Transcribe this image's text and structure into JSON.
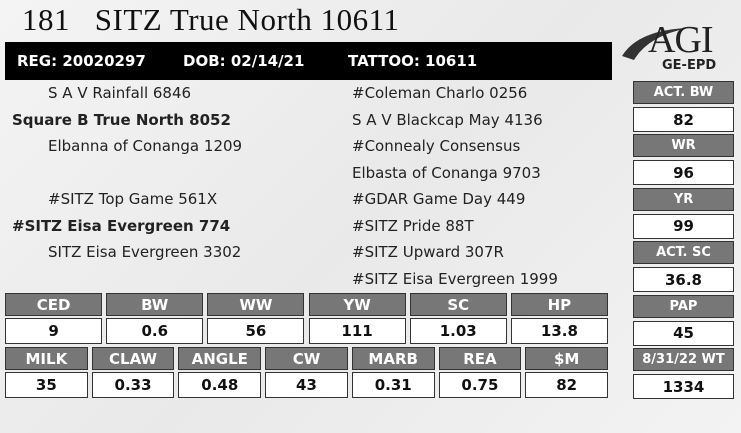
{
  "header": {
    "lot": "181",
    "name": "SITZ True North 10611"
  },
  "id_bar": {
    "reg": "REG: 20020297",
    "dob": "DOB: 02/14/21",
    "tattoo": "TATTOO: 10611"
  },
  "logo": {
    "main": "AGI",
    "sub": "GE-EPD"
  },
  "pedigree": {
    "left": [
      {
        "text": "S A V Rainfall 6846",
        "bold": false
      },
      {
        "text": "Square B True North 8052",
        "bold": true
      },
      {
        "text": "Elbanna of Conanga 1209",
        "bold": false
      },
      {
        "text": "#SITZ Top Game 561X",
        "bold": false
      },
      {
        "text": "#SITZ Eisa Evergreen 774",
        "bold": true
      },
      {
        "text": "SITZ Eisa Evergreen 3302",
        "bold": false
      }
    ],
    "right": [
      "#Coleman Charlo 0256",
      "S A V Blackcap May 4136",
      "#Connealy Consensus",
      "Elbasta of Conanga 9703",
      "#GDAR Game Day 449",
      "#SITZ Pride 88T",
      "#SITZ Upward 307R",
      "#SITZ Eisa Evergreen 1999"
    ]
  },
  "stats": [
    {
      "label": "ACT. BW",
      "value": "82"
    },
    {
      "label": "WR",
      "value": "96"
    },
    {
      "label": "YR",
      "value": "99"
    },
    {
      "label": "ACT. SC",
      "value": "36.8"
    },
    {
      "label": "PAP",
      "value": "45"
    },
    {
      "label": "8/31/22 WT",
      "value": "1334"
    }
  ],
  "epd_rows": [
    [
      {
        "header": "CED",
        "value": "9"
      },
      {
        "header": "BW",
        "value": "0.6"
      },
      {
        "header": "WW",
        "value": "56"
      },
      {
        "header": "YW",
        "value": "111"
      },
      {
        "header": "SC",
        "value": "1.03"
      },
      {
        "header": "HP",
        "value": "13.8"
      }
    ],
    [
      {
        "header": "MILK",
        "value": "35"
      },
      {
        "header": "CLAW",
        "value": "0.33"
      },
      {
        "header": "ANGLE",
        "value": "0.48"
      },
      {
        "header": "CW",
        "value": "43"
      },
      {
        "header": "MARB",
        "value": "0.31"
      },
      {
        "header": "REA",
        "value": "0.75"
      },
      {
        "header": "$M",
        "value": "82"
      }
    ]
  ]
}
